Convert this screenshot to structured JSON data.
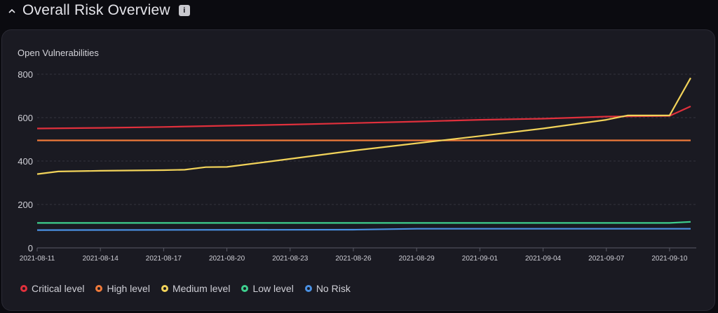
{
  "header": {
    "title": "Overall Risk Overview",
    "info_icon": "info-icon",
    "toggle_icon": "chevron-up-icon"
  },
  "chart_data": {
    "type": "line",
    "title": "Open Vulnerabilities",
    "xlabel": "",
    "ylabel": "",
    "ylim": [
      0,
      800
    ],
    "yticks": [
      0,
      200,
      400,
      600,
      800
    ],
    "xticks": [
      "2021-08-11",
      "2021-08-14",
      "2021-08-17",
      "2021-08-20",
      "2021-08-23",
      "2021-08-26",
      "2021-08-29",
      "2021-09-01",
      "2021-09-04",
      "2021-09-07",
      "2021-09-10"
    ],
    "x_range": [
      "2021-08-11",
      "2021-09-11"
    ],
    "grid": true,
    "legend_position": "bottom-left",
    "series": [
      {
        "name": "Critical level",
        "color": "#e0303c",
        "points": [
          [
            "2021-08-11",
            550
          ],
          [
            "2021-08-14",
            553
          ],
          [
            "2021-08-17",
            557
          ],
          [
            "2021-08-20",
            563
          ],
          [
            "2021-08-23",
            568
          ],
          [
            "2021-08-26",
            575
          ],
          [
            "2021-08-29",
            582
          ],
          [
            "2021-09-01",
            590
          ],
          [
            "2021-09-04",
            595
          ],
          [
            "2021-09-07",
            605
          ],
          [
            "2021-09-10",
            608
          ],
          [
            "2021-09-11",
            652
          ]
        ]
      },
      {
        "name": "High level",
        "color": "#f07a3a",
        "points": [
          [
            "2021-08-11",
            495
          ],
          [
            "2021-09-11",
            495
          ]
        ]
      },
      {
        "name": "Medium level",
        "color": "#f2d35a",
        "points": [
          [
            "2021-08-11",
            340
          ],
          [
            "2021-08-12",
            352
          ],
          [
            "2021-08-14",
            355
          ],
          [
            "2021-08-17",
            358
          ],
          [
            "2021-08-18",
            360
          ],
          [
            "2021-08-19",
            372
          ],
          [
            "2021-08-20",
            373
          ],
          [
            "2021-08-23",
            410
          ],
          [
            "2021-08-26",
            448
          ],
          [
            "2021-08-29",
            482
          ],
          [
            "2021-09-01",
            515
          ],
          [
            "2021-09-04",
            550
          ],
          [
            "2021-09-07",
            590
          ],
          [
            "2021-09-08",
            610
          ],
          [
            "2021-09-10",
            610
          ],
          [
            "2021-09-11",
            783
          ]
        ]
      },
      {
        "name": "Low level",
        "color": "#3ecf8e",
        "points": [
          [
            "2021-08-11",
            115
          ],
          [
            "2021-09-10",
            115
          ],
          [
            "2021-09-11",
            120
          ]
        ]
      },
      {
        "name": "No Risk",
        "color": "#4a90e2",
        "points": [
          [
            "2021-08-11",
            82
          ],
          [
            "2021-08-26",
            84
          ],
          [
            "2021-08-29",
            88
          ],
          [
            "2021-09-11",
            88
          ]
        ]
      }
    ]
  }
}
